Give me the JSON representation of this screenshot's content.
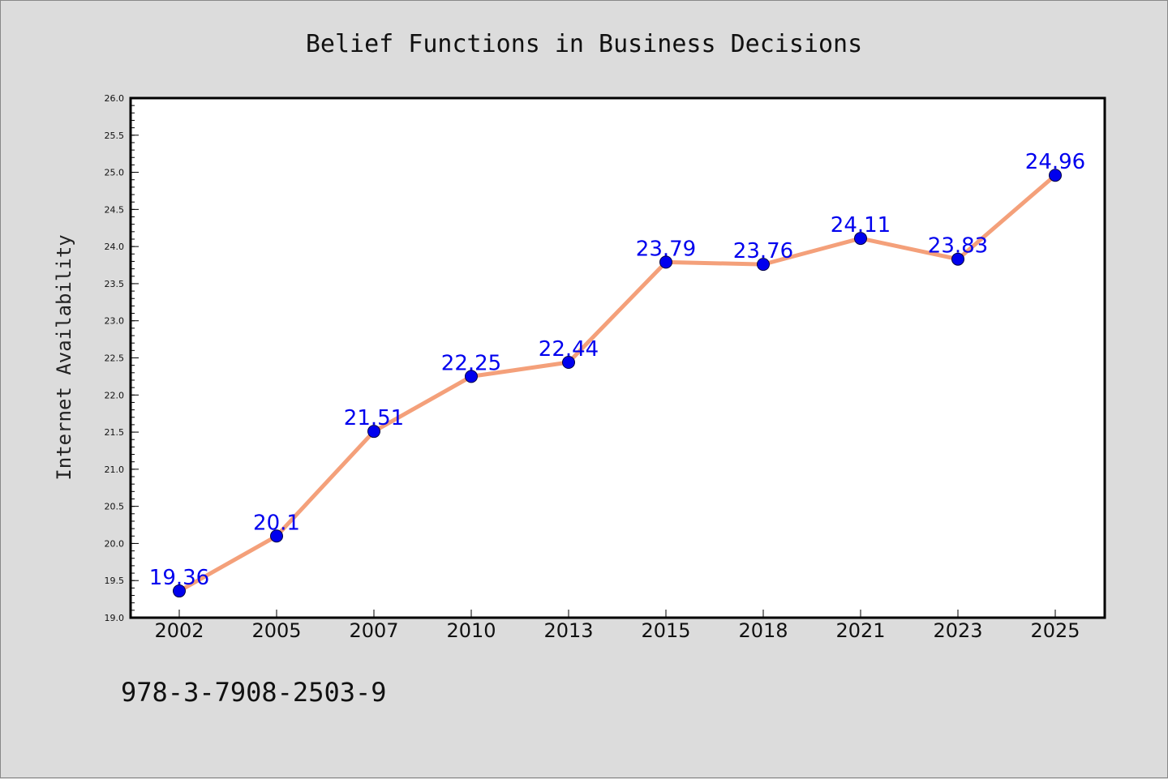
{
  "chart_data": {
    "type": "line",
    "title": "Belief Functions in Business Decisions",
    "xlabel": "",
    "ylabel": "Internet Availability",
    "categories": [
      "2002",
      "2005",
      "2007",
      "2010",
      "2013",
      "2015",
      "2018",
      "2021",
      "2023",
      "2025"
    ],
    "values": [
      19.36,
      20.1,
      21.51,
      22.25,
      22.44,
      23.79,
      23.76,
      24.11,
      23.83,
      24.96
    ],
    "data_labels": [
      "19.36",
      "20.1",
      "21.51",
      "22.25",
      "22.44",
      "23.79",
      "23.76",
      "24.11",
      "23.83",
      "24.96"
    ],
    "ylim": [
      19.0,
      26.0
    ],
    "y_ticks": [
      "19.0",
      "19.5",
      "20.0",
      "20.5",
      "21.0",
      "21.5",
      "22.0",
      "22.5",
      "23.0",
      "23.5",
      "24.0",
      "24.5",
      "25.0",
      "25.5",
      "26.0"
    ],
    "grid": false,
    "legend": "none",
    "colors": {
      "line": "#f4a07a",
      "marker": "#0000ee",
      "marker_edge": "#000044",
      "data_label": "#0000ee",
      "background": "#dcdcdc",
      "plot_background": "#ffffff"
    }
  },
  "footer": {
    "isbn": "978-3-7908-2503-9"
  }
}
